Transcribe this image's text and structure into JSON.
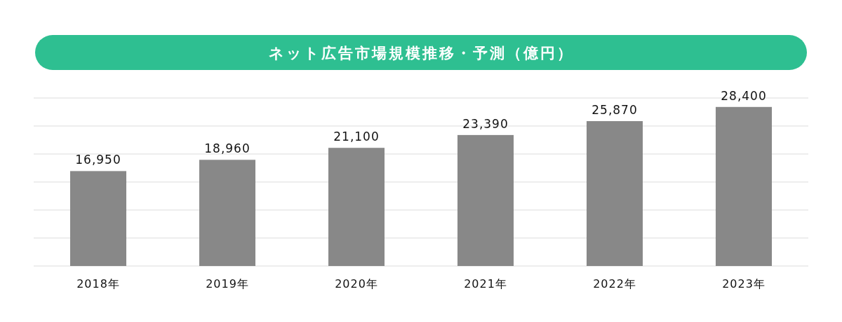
{
  "chart_data": {
    "type": "bar",
    "title": "ネット広告市場規模推移・予測（億円）",
    "categories": [
      "2018年",
      "2019年",
      "2020年",
      "2021年",
      "2022年",
      "2023年"
    ],
    "values": [
      16950,
      18960,
      21100,
      23390,
      25870,
      28400
    ],
    "color": "#888888",
    "value_labels": [
      "16,950",
      "18,960",
      "21,100",
      "23,390",
      "25,870",
      "28,400"
    ],
    "ylim": [
      0,
      30000
    ],
    "yticks": [
      {
        "value": 0,
        "label": null
      },
      {
        "value": 5000,
        "label": null
      },
      {
        "value": 10000,
        "label": null
      },
      {
        "value": 15000,
        "label": null
      },
      {
        "value": 20000,
        "label": null
      },
      {
        "value": 25000,
        "label": null
      },
      {
        "value": 30000,
        "label": null
      }
    ],
    "grid": "y",
    "tick_labels": "x"
  }
}
